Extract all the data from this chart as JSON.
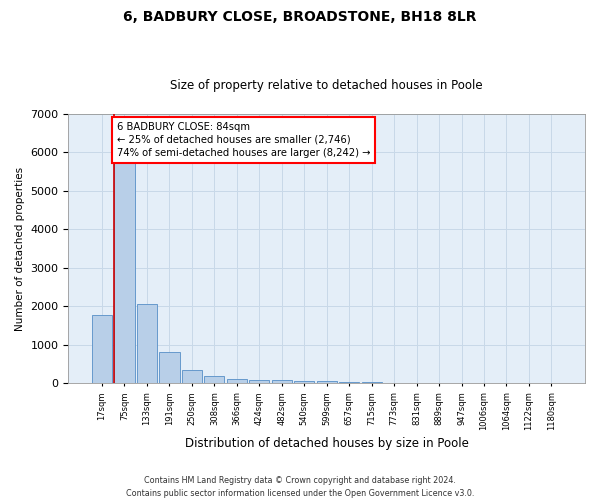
{
  "title": "6, BADBURY CLOSE, BROADSTONE, BH18 8LR",
  "subtitle": "Size of property relative to detached houses in Poole",
  "xlabel": "Distribution of detached houses by size in Poole",
  "ylabel": "Number of detached properties",
  "categories": [
    "17sqm",
    "75sqm",
    "133sqm",
    "191sqm",
    "250sqm",
    "308sqm",
    "366sqm",
    "424sqm",
    "482sqm",
    "540sqm",
    "599sqm",
    "657sqm",
    "715sqm",
    "773sqm",
    "831sqm",
    "889sqm",
    "947sqm",
    "1006sqm",
    "1064sqm",
    "1122sqm",
    "1180sqm"
  ],
  "values": [
    1780,
    5800,
    2060,
    820,
    340,
    185,
    120,
    100,
    95,
    70,
    60,
    45,
    40,
    0,
    0,
    0,
    0,
    0,
    0,
    0,
    0
  ],
  "bar_color": "#b8cfe8",
  "bar_edge_color": "#6699cc",
  "property_label": "6 BADBURY CLOSE: 84sqm",
  "annotation_line1": "← 25% of detached houses are smaller (2,746)",
  "annotation_line2": "74% of semi-detached houses are larger (8,242) →",
  "vline_color": "#cc0000",
  "ylim": [
    0,
    7000
  ],
  "yticks": [
    0,
    1000,
    2000,
    3000,
    4000,
    5000,
    6000,
    7000
  ],
  "background_color": "#ffffff",
  "grid_color": "#c8d8e8",
  "axes_bg_color": "#e4eef8",
  "footnote1": "Contains HM Land Registry data © Crown copyright and database right 2024.",
  "footnote2": "Contains public sector information licensed under the Open Government Licence v3.0."
}
